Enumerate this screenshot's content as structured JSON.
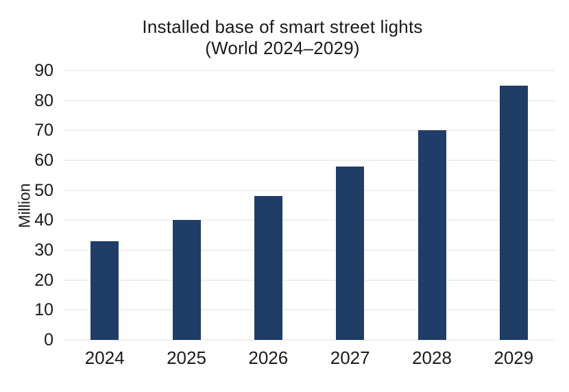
{
  "title": {
    "line1": "Installed base of smart street lights",
    "line2": "(World 2024–2029)"
  },
  "chart_data": {
    "type": "bar",
    "title": "Installed base of smart street lights (World 2024–2029)",
    "categories": [
      "2024",
      "2025",
      "2026",
      "2027",
      "2028",
      "2029"
    ],
    "values": [
      33,
      40,
      48,
      58,
      70,
      85
    ],
    "xlabel": "",
    "ylabel": "Million",
    "ylim": [
      0,
      90
    ],
    "yticks": [
      0,
      10,
      20,
      30,
      40,
      50,
      60,
      70,
      80,
      90
    ],
    "grid": true,
    "legend": "none",
    "bar_color": "#1f3d67",
    "grid_color": "#efefef",
    "text_color": "#1a1a1a",
    "background_color": "#ffffff"
  }
}
